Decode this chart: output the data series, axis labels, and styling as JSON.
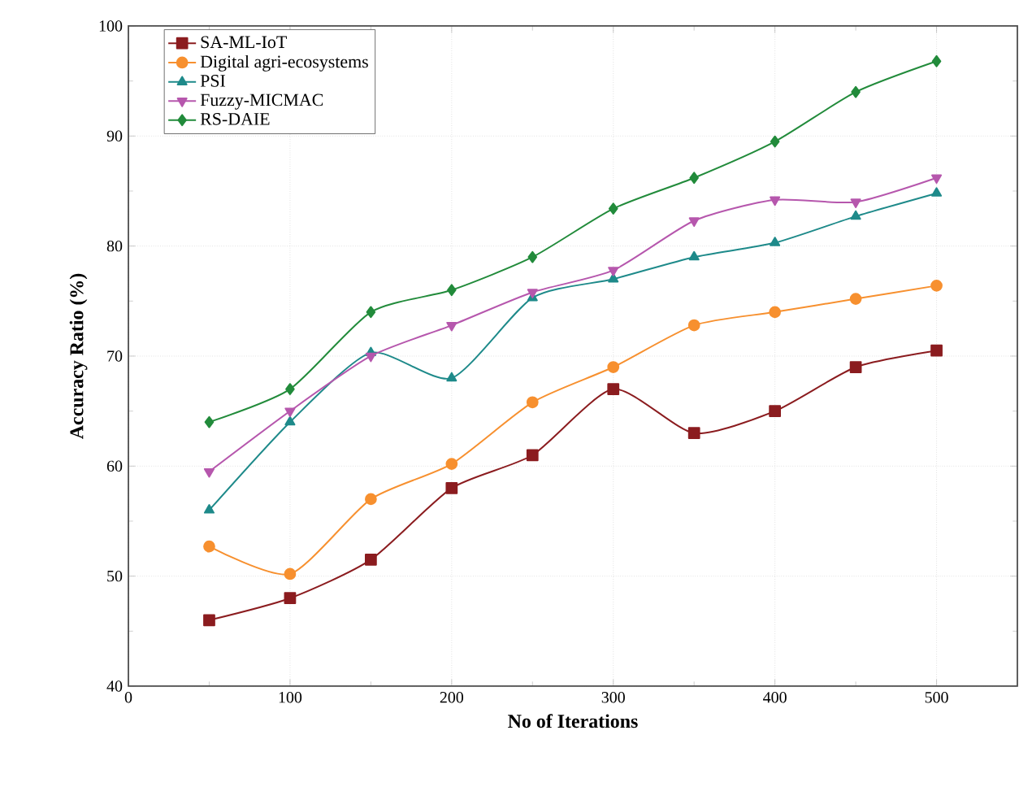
{
  "chart_data": {
    "type": "line",
    "xlabel": "No of Iterations",
    "ylabel": "Accuracy Ratio (%)",
    "x": [
      50,
      100,
      150,
      200,
      250,
      300,
      350,
      400,
      450,
      500
    ],
    "series": [
      {
        "name": "SA-ML-IoT",
        "color": "#8b1c1f",
        "marker": "square",
        "values": [
          46,
          48,
          51.5,
          58,
          61,
          67,
          63,
          65,
          69,
          70.5
        ]
      },
      {
        "name": "Digital agri-ecosystems",
        "color": "#f7902f",
        "marker": "circle",
        "values": [
          52.7,
          50.2,
          57,
          60.2,
          65.8,
          69,
          72.8,
          74,
          75.2,
          76.4
        ]
      },
      {
        "name": "PSI",
        "color": "#1e8a8a",
        "marker": "triangle",
        "values": [
          56,
          64,
          70.3,
          68,
          75.3,
          77,
          79,
          80.3,
          82.7,
          84.8
        ]
      },
      {
        "name": "Fuzzy-MICMAC",
        "color": "#b657ad",
        "marker": "triangle-down",
        "values": [
          59.5,
          65,
          70,
          72.8,
          75.8,
          77.8,
          82.3,
          84.2,
          84,
          86.2
        ]
      },
      {
        "name": "RS-DAIE",
        "color": "#228b3b",
        "marker": "diamond",
        "values": [
          64,
          67,
          74,
          76,
          79,
          83.4,
          86.2,
          89.5,
          94,
          96.8
        ]
      }
    ],
    "xlim": [
      0,
      550
    ],
    "ylim": [
      40,
      100
    ],
    "xticks": [
      0,
      100,
      200,
      300,
      400,
      500
    ],
    "yticks": [
      40,
      50,
      60,
      70,
      80,
      90,
      100
    ],
    "grid": true,
    "legend": "top left",
    "line_style": "solid"
  }
}
